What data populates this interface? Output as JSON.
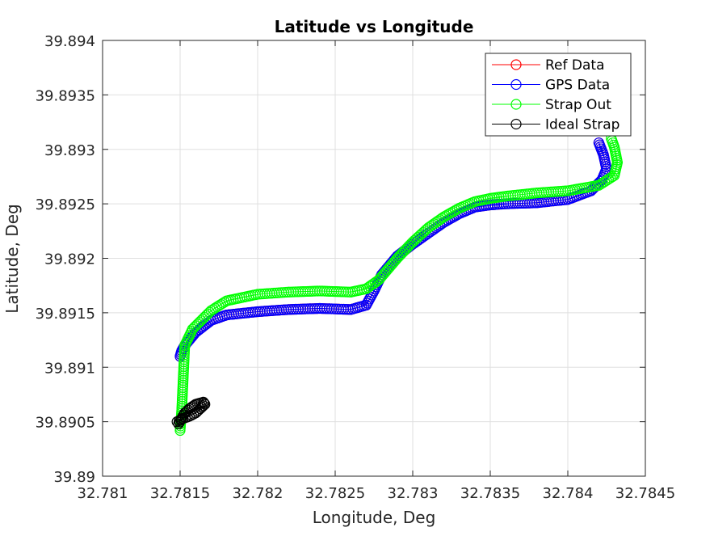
{
  "chart_data": {
    "type": "scatter",
    "title": "Latitude vs Longitude",
    "xlabel": "Longitude, Deg",
    "ylabel": "Latitude, Deg",
    "xlim": [
      32.781,
      32.7845
    ],
    "ylim": [
      39.89,
      39.894
    ],
    "xticks": [
      "32.781",
      "32.7815",
      "32.782",
      "32.7825",
      "32.783",
      "32.7835",
      "32.784",
      "32.7845"
    ],
    "yticks": [
      "39.89",
      "39.8905",
      "39.891",
      "39.8915",
      "39.892",
      "39.8925",
      "39.893",
      "39.8935",
      "39.894"
    ],
    "grid": true,
    "legend_position": "top-right",
    "series": [
      {
        "name": "Ref Data",
        "color": "#ff0000",
        "marker": "circle",
        "x": [
          32.7815,
          32.78151,
          32.78153,
          32.7816,
          32.7817,
          32.7818,
          32.782,
          32.7822,
          32.7824,
          32.7826,
          32.7827,
          32.78275,
          32.7828,
          32.7829,
          32.783,
          32.7831,
          32.7832,
          32.7833,
          32.7834,
          32.7835,
          32.7836,
          32.7838,
          32.784,
          32.78415,
          32.78422,
          32.78425,
          32.78423,
          32.7842
        ],
        "y": [
          39.8911,
          39.89115,
          39.8912,
          39.89132,
          39.89143,
          39.89148,
          39.89151,
          39.89153,
          39.89154,
          39.89153,
          39.89157,
          39.8917,
          39.89185,
          39.89202,
          39.89213,
          39.89223,
          39.89233,
          39.89241,
          39.89247,
          39.89249,
          39.8925,
          39.89251,
          39.89254,
          39.89262,
          39.89272,
          39.89282,
          39.89295,
          39.89306
        ]
      },
      {
        "name": "GPS Data",
        "color": "#0000ff",
        "marker": "circle",
        "x": [
          32.7815,
          32.78151,
          32.78153,
          32.7816,
          32.7817,
          32.7818,
          32.782,
          32.7822,
          32.7824,
          32.7826,
          32.7827,
          32.78275,
          32.7828,
          32.7829,
          32.783,
          32.7831,
          32.7832,
          32.7833,
          32.7834,
          32.7835,
          32.7836,
          32.7838,
          32.784,
          32.78415,
          32.78422,
          32.78425,
          32.78423,
          32.7842
        ],
        "y": [
          39.8911,
          39.89115,
          39.8912,
          39.89132,
          39.89143,
          39.89148,
          39.89151,
          39.89153,
          39.89154,
          39.89153,
          39.89157,
          39.8917,
          39.89185,
          39.89202,
          39.89213,
          39.89223,
          39.89233,
          39.89241,
          39.89247,
          39.89249,
          39.8925,
          39.89251,
          39.89254,
          39.89262,
          39.89272,
          39.89282,
          39.89295,
          39.89306
        ]
      },
      {
        "name": "Strap Out",
        "color": "#00ff00",
        "marker": "circle",
        "x": [
          32.7815,
          32.78151,
          32.78152,
          32.78153,
          32.78158,
          32.7817,
          32.7818,
          32.782,
          32.7822,
          32.7824,
          32.7826,
          32.7827,
          32.78278,
          32.7829,
          32.783,
          32.7831,
          32.7832,
          32.7833,
          32.7834,
          32.7835,
          32.7836,
          32.7838,
          32.784,
          32.7842,
          32.7843,
          32.78432,
          32.7843,
          32.78428
        ],
        "y": [
          39.89042,
          39.8906,
          39.8909,
          39.8912,
          39.89135,
          39.89152,
          39.89161,
          39.89167,
          39.89169,
          39.8917,
          39.89169,
          39.89172,
          39.8918,
          39.892,
          39.89215,
          39.89228,
          39.89238,
          39.89246,
          39.89252,
          39.89255,
          39.89257,
          39.8926,
          39.89262,
          39.89267,
          39.89276,
          39.89288,
          39.89302,
          39.8931
        ]
      },
      {
        "name": "Ideal Strap",
        "color": "#000000",
        "marker": "circle",
        "x": [
          32.78148,
          32.78152,
          32.78156,
          32.7816,
          32.78163,
          32.78166,
          32.78165,
          32.7816,
          32.78156,
          32.78153,
          32.78149
        ],
        "y": [
          39.8905,
          39.89053,
          39.89055,
          39.89058,
          39.89062,
          39.89066,
          39.89068,
          39.89066,
          39.89062,
          39.89058,
          39.89048
        ]
      }
    ]
  }
}
